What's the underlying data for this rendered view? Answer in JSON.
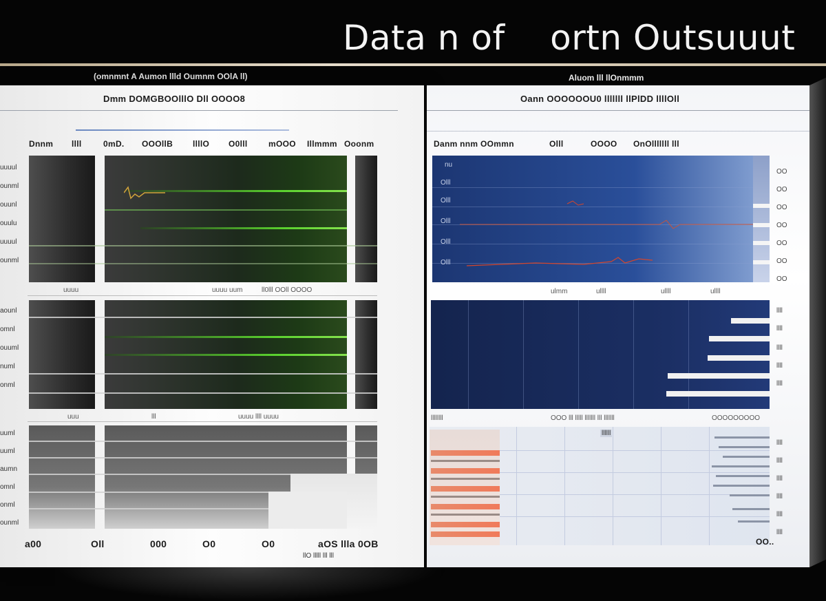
{
  "header": {
    "title": "Data n of    ortn Outsuuut"
  },
  "left_panel": {
    "caption": "(omnmnt A Aumon llld Oumnm OOlA ll)",
    "header_text": "Dmm   DOMGBOOlllO  Dll  OOOO8",
    "col_headers": [
      "Dnnm",
      "llll",
      "0mD.",
      "OOOllB",
      "llllO",
      "O0lll",
      "mOOO",
      "Illmmm",
      "Ooonm"
    ],
    "row_labels_top": [
      "uuuul",
      "ounml",
      "ouunl",
      "ouulu",
      "uuuul",
      "ounml"
    ],
    "row_labels_mid": [
      "aounl",
      "omnl",
      "ouuml",
      "numl",
      "onml"
    ],
    "row_labels_bot": [
      "uuml",
      "uuml",
      "aumn",
      "omnl",
      "onml",
      "ounml"
    ],
    "mid_labels_1": [
      "uuuu",
      "uuuu uum",
      "ll0lll  OOll  OOOO"
    ],
    "mid_labels_2": [
      "uuu",
      "lll",
      "uuuu  llll  uuuu"
    ],
    "footer": [
      "a00",
      "Oll",
      "000",
      "O0",
      "O0",
      "aOS llla 0OB",
      "llO lllll lll lll"
    ]
  },
  "right_panel": {
    "caption": "Aluom lll llOnmmm",
    "header_text": "Oann  OOOOOOU0  lllllll  llPlDD  llllOll",
    "col_headers": [
      "Danm  nnm OOmmn",
      "Olll",
      "OOOO",
      "OnOlllllll lll"
    ],
    "left_ticks": [
      "nu",
      "Olll",
      "Olll",
      "Olll",
      "Olll",
      "Olll"
    ],
    "right_ticks_top": [
      "OO",
      "OO",
      "OO",
      "OO",
      "OO",
      "OO",
      "OO"
    ],
    "right_ticks_mid": [
      "llll",
      "llll",
      "llll",
      "llll",
      "llll"
    ],
    "right_ticks_bot": [
      "llll",
      "llll",
      "llll",
      "llll",
      "llll",
      "llll"
    ],
    "mid_labels_1": [
      "ulmm",
      "ullll",
      "ullll",
      "ullll"
    ],
    "mid_labels_2": [
      "llllllll",
      "OOO lll lllll lllllll lll lllllll",
      "OOOOOOOOO"
    ],
    "legend_box": "llllll",
    "footer_right": "OO.."
  },
  "colors": {
    "background": "#050505",
    "title": "#f3f3f3",
    "rule": "#d8ccb3",
    "green_trace": "#5ad12e",
    "blue_panel": "#1c3672",
    "orange_bars": "#f07a5a"
  }
}
